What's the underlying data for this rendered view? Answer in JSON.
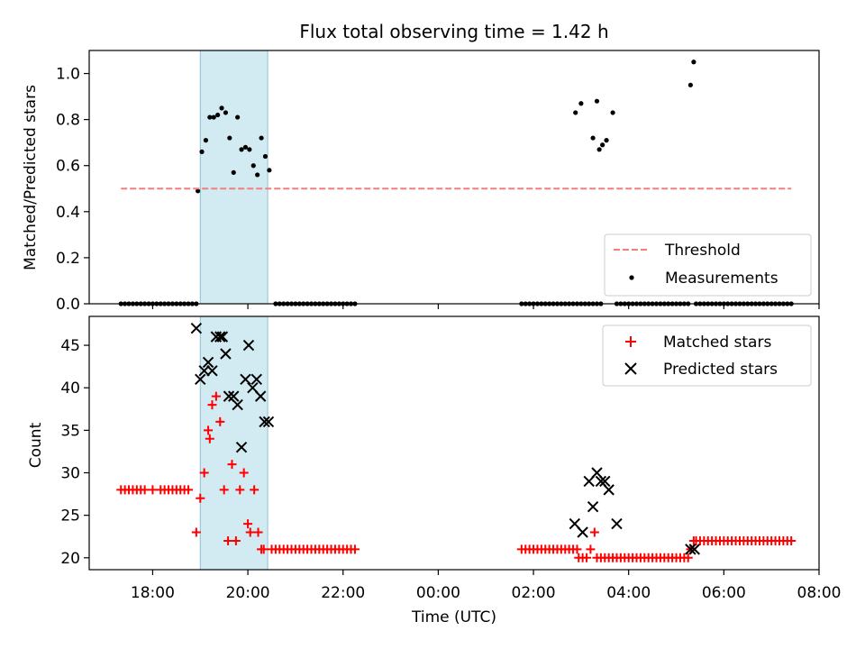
{
  "chart_data": [
    {
      "type": "scatter",
      "title": "Flux total observing time = 1.42 h",
      "xlabel": "",
      "ylabel": "Matched/Predicted stars",
      "xlim": [
        "16:40",
        "08:00"
      ],
      "ylim": [
        0,
        1.1
      ],
      "y_ticks": [
        0.0,
        0.2,
        0.4,
        0.6,
        0.8,
        1.0
      ],
      "y_tick_labels": [
        "0.0",
        "0.2",
        "0.4",
        "0.6",
        "0.8",
        "1.0"
      ],
      "observing_window": [
        "19:00",
        "20:25"
      ],
      "observing_window_color": "#add8e6",
      "legend": {
        "placement": "lower-right",
        "entries": [
          "Threshold",
          "Measurements"
        ]
      },
      "threshold": {
        "name": "Threshold",
        "y": 0.5,
        "x_range": [
          "17:20",
          "07:25"
        ],
        "color": "#f08080",
        "style": "dashed"
      },
      "series": [
        {
          "name": "Measurements",
          "marker": "dot",
          "color": "#000000",
          "x": [
            "17:20",
            "17:25",
            "17:30",
            "17:35",
            "17:40",
            "17:45",
            "17:50",
            "17:55",
            "18:00",
            "18:05",
            "18:10",
            "18:15",
            "18:20",
            "18:25",
            "18:30",
            "18:35",
            "18:40",
            "18:45",
            "18:50",
            "18:55",
            "18:57",
            "19:02",
            "19:07",
            "19:12",
            "19:17",
            "19:22",
            "19:27",
            "19:32",
            "19:37",
            "19:42",
            "19:47",
            "19:52",
            "19:57",
            "20:02",
            "20:07",
            "20:12",
            "20:17",
            "20:22",
            "20:27",
            "20:35",
            "20:40",
            "20:45",
            "20:50",
            "20:55",
            "21:00",
            "21:05",
            "21:10",
            "21:15",
            "21:20",
            "21:25",
            "21:30",
            "21:35",
            "21:40",
            "21:45",
            "21:50",
            "21:55",
            "22:00",
            "22:05",
            "22:10",
            "22:15",
            "01:45",
            "01:50",
            "01:55",
            "02:00",
            "02:05",
            "02:10",
            "02:15",
            "02:20",
            "02:25",
            "02:30",
            "02:35",
            "02:40",
            "02:45",
            "02:50",
            "02:55",
            "03:00",
            "03:05",
            "03:10",
            "03:15",
            "03:20",
            "03:25",
            "02:53",
            "03:00",
            "03:15",
            "03:20",
            "03:23",
            "03:27",
            "03:32",
            "03:40",
            "03:45",
            "03:50",
            "03:55",
            "04:00",
            "04:05",
            "04:10",
            "04:15",
            "04:20",
            "04:25",
            "04:30",
            "04:35",
            "04:40",
            "04:45",
            "04:50",
            "04:55",
            "05:00",
            "05:05",
            "05:10",
            "05:15",
            "05:18",
            "05:22",
            "05:25",
            "05:30",
            "05:35",
            "05:40",
            "05:45",
            "05:50",
            "05:55",
            "06:00",
            "06:05",
            "06:10",
            "06:15",
            "06:20",
            "06:25",
            "06:30",
            "06:35",
            "06:40",
            "06:45",
            "06:50",
            "06:55",
            "07:00",
            "07:05",
            "07:10",
            "07:15",
            "07:20",
            "07:25"
          ],
          "y": [
            0,
            0,
            0,
            0,
            0,
            0,
            0,
            0,
            0,
            0,
            0,
            0,
            0,
            0,
            0,
            0,
            0,
            0,
            0,
            0,
            0.49,
            0.66,
            0.71,
            0.81,
            0.81,
            0.82,
            0.85,
            0.83,
            0.72,
            0.57,
            0.81,
            0.67,
            0.68,
            0.67,
            0.6,
            0.56,
            0.72,
            0.64,
            0.58,
            0,
            0,
            0,
            0,
            0,
            0,
            0,
            0,
            0,
            0,
            0,
            0,
            0,
            0,
            0,
            0,
            0,
            0,
            0,
            0,
            0,
            0,
            0,
            0,
            0,
            0,
            0,
            0,
            0,
            0,
            0,
            0,
            0,
            0,
            0,
            0,
            0,
            0,
            0,
            0,
            0,
            0,
            0.83,
            0.87,
            0.72,
            0.88,
            0.67,
            0.69,
            0.71,
            0.83,
            0,
            0,
            0,
            0,
            0,
            0,
            0,
            0,
            0,
            0,
            0,
            0,
            0,
            0,
            0,
            0,
            0,
            0,
            0,
            0.95,
            1.05,
            0,
            0,
            0,
            0,
            0,
            0,
            0,
            0,
            0,
            0,
            0,
            0,
            0,
            0,
            0,
            0,
            0,
            0,
            0,
            0,
            0,
            0,
            0,
            0,
            0
          ]
        }
      ]
    },
    {
      "type": "scatter",
      "title": "",
      "xlabel": "Time (UTC)",
      "ylabel": "Count",
      "xlim": [
        "16:40",
        "08:00"
      ],
      "ylim": [
        18.6,
        48.4
      ],
      "y_ticks": [
        20,
        25,
        30,
        35,
        40,
        45
      ],
      "y_tick_labels": [
        "20",
        "25",
        "30",
        "35",
        "40",
        "45"
      ],
      "x_ticks": [
        "18:00",
        "20:00",
        "22:00",
        "00:00",
        "02:00",
        "04:00",
        "06:00",
        "08:00"
      ],
      "observing_window": [
        "19:00",
        "20:25"
      ],
      "observing_window_color": "#add8e6",
      "legend": {
        "placement": "upper-right",
        "entries": [
          "Matched stars",
          "Predicted stars"
        ]
      },
      "series": [
        {
          "name": "Matched stars",
          "marker": "plus",
          "color": "#ff0000",
          "x": [
            "17:20",
            "17:25",
            "17:30",
            "17:35",
            "17:40",
            "17:45",
            "17:50",
            "18:00",
            "18:10",
            "18:15",
            "18:20",
            "18:25",
            "18:30",
            "18:35",
            "18:40",
            "18:45",
            "18:55",
            "19:00",
            "19:05",
            "19:10",
            "19:12",
            "19:15",
            "19:20",
            "19:25",
            "19:30",
            "19:35",
            "19:40",
            "19:45",
            "19:50",
            "19:55",
            "20:00",
            "20:03",
            "20:08",
            "20:13",
            "20:17",
            "20:20",
            "20:30",
            "20:35",
            "20:40",
            "20:45",
            "20:50",
            "20:55",
            "21:00",
            "21:05",
            "21:10",
            "21:15",
            "21:20",
            "21:25",
            "21:30",
            "21:35",
            "21:40",
            "21:45",
            "21:50",
            "21:55",
            "22:00",
            "22:05",
            "22:10",
            "22:15",
            "01:45",
            "01:50",
            "01:55",
            "02:00",
            "02:05",
            "02:10",
            "02:15",
            "02:20",
            "02:25",
            "02:30",
            "02:35",
            "02:40",
            "02:45",
            "02:50",
            "02:55",
            "02:57",
            "03:02",
            "03:07",
            "03:12",
            "03:17",
            "03:20",
            "03:25",
            "03:30",
            "03:35",
            "03:40",
            "03:45",
            "03:50",
            "03:55",
            "04:00",
            "04:05",
            "04:10",
            "04:15",
            "04:20",
            "04:25",
            "04:30",
            "04:35",
            "04:40",
            "04:45",
            "04:50",
            "04:55",
            "05:00",
            "05:05",
            "05:10",
            "05:15",
            "05:18",
            "05:22",
            "05:25",
            "05:30",
            "05:35",
            "05:40",
            "05:45",
            "05:50",
            "05:55",
            "06:00",
            "06:05",
            "06:10",
            "06:15",
            "06:20",
            "06:25",
            "06:30",
            "06:35",
            "06:40",
            "06:45",
            "06:50",
            "06:55",
            "07:00",
            "07:05",
            "07:10",
            "07:15",
            "07:20",
            "07:25"
          ],
          "y": [
            28,
            28,
            28,
            28,
            28,
            28,
            28,
            28,
            28,
            28,
            28,
            28,
            28,
            28,
            28,
            28,
            23,
            27,
            30,
            35,
            34,
            38,
            39,
            36,
            28,
            22,
            31,
            22,
            28,
            30,
            24,
            23,
            28,
            23,
            21,
            21,
            21,
            21,
            21,
            21,
            21,
            21,
            21,
            21,
            21,
            21,
            21,
            21,
            21,
            21,
            21,
            21,
            21,
            21,
            21,
            21,
            21,
            21,
            21,
            21,
            21,
            21,
            21,
            21,
            21,
            21,
            21,
            21,
            21,
            21,
            21,
            21,
            21,
            20,
            20,
            20,
            21,
            23,
            20,
            20,
            20,
            20,
            20,
            20,
            20,
            20,
            20,
            20,
            20,
            20,
            20,
            20,
            20,
            20,
            20,
            20,
            20,
            20,
            20,
            20,
            20,
            20,
            21,
            22,
            22,
            22,
            22,
            22,
            22,
            22,
            22,
            22,
            22,
            22,
            22,
            22,
            22,
            22,
            22,
            22,
            22,
            22,
            22,
            22,
            22,
            22,
            22,
            22,
            22
          ]
        },
        {
          "name": "Predicted stars",
          "marker": "x",
          "color": "#000000",
          "x": [
            "18:55",
            "19:00",
            "19:05",
            "19:10",
            "19:15",
            "19:20",
            "19:25",
            "19:28",
            "19:32",
            "19:36",
            "19:42",
            "19:47",
            "19:52",
            "19:57",
            "20:01",
            "20:06",
            "20:11",
            "20:16",
            "20:21",
            "20:26",
            "02:52",
            "03:02",
            "03:10",
            "03:15",
            "03:20",
            "03:25",
            "03:30",
            "03:35",
            "03:45",
            "05:18",
            "05:23"
          ],
          "y": [
            47,
            41,
            42,
            43,
            42,
            46,
            46,
            46,
            44,
            39,
            39,
            38,
            33,
            41,
            45,
            40,
            41,
            39,
            36,
            36,
            24,
            23,
            29,
            26,
            30,
            29,
            29,
            28,
            24,
            21,
            21
          ]
        }
      ]
    }
  ]
}
